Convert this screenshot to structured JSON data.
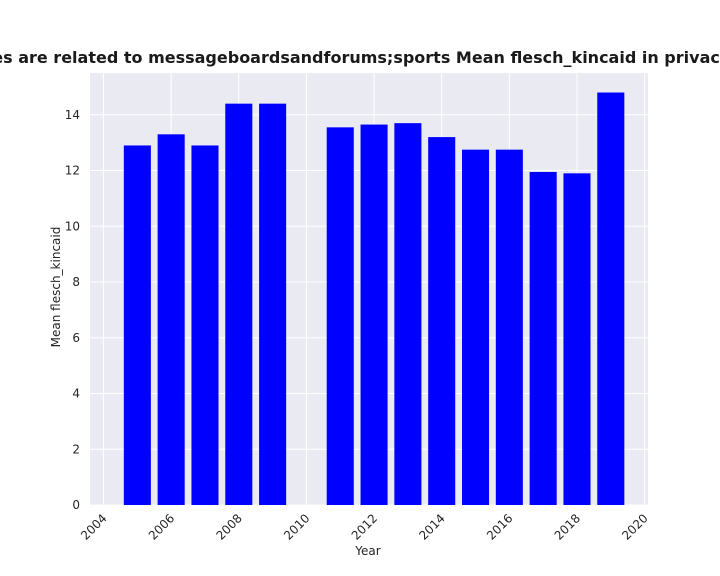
{
  "chart_data": {
    "type": "bar",
    "title": "Categories are related to messageboardsandforums;sports Mean flesch_kincaid in privacy policies",
    "xlabel": "Year",
    "ylabel": "Mean flesch_kincaid",
    "x": [
      2005,
      2006,
      2007,
      2008,
      2009,
      2011,
      2012,
      2013,
      2014,
      2015,
      2016,
      2017,
      2018,
      2019
    ],
    "values": [
      12.9,
      13.3,
      12.9,
      14.4,
      14.4,
      13.55,
      13.65,
      13.7,
      13.2,
      12.75,
      12.75,
      11.95,
      11.9,
      14.8
    ],
    "xlim": [
      2003.6,
      2020.1
    ],
    "ylim": [
      0,
      15.5
    ],
    "xticks": [
      2004,
      2006,
      2008,
      2010,
      2012,
      2014,
      2016,
      2018,
      2020
    ],
    "yticks": [
      0,
      2,
      4,
      6,
      8,
      10,
      12,
      14
    ],
    "bar_color": "#0000ff",
    "plot_background": "#eaeaf2",
    "grid_color": "#ffffff",
    "grid": true
  }
}
